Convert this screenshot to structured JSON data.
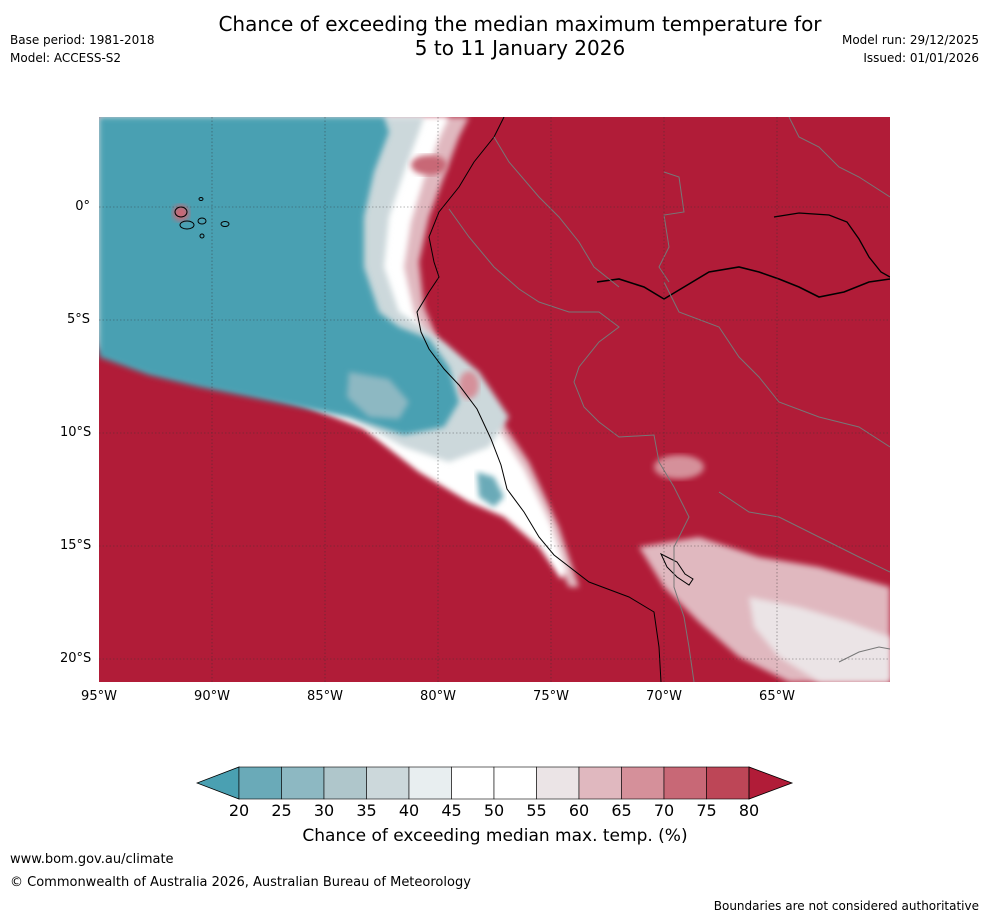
{
  "title_line1": "Chance of exceeding the median maximum temperature for",
  "title_line2": "5 to 11 January 2026",
  "meta_left": {
    "base_period": "Base period: 1981-2018",
    "model": "Model: ACCESS-S2"
  },
  "meta_right": {
    "model_run": "Model run: 29/12/2025",
    "issued": "Issued: 01/01/2026"
  },
  "lat_labels": [
    "0°",
    "5°S",
    "10°S",
    "15°S",
    "20°S"
  ],
  "lon_labels": [
    "95°W",
    "90°W",
    "85°W",
    "80°W",
    "75°W",
    "70°W",
    "65°W"
  ],
  "colorbar": {
    "ticks": [
      "20",
      "25",
      "30",
      "35",
      "40",
      "45",
      "50",
      "55",
      "60",
      "65",
      "70",
      "75",
      "80"
    ],
    "title": "Chance of exceeding median max. temp. (%)",
    "colors": [
      "#4aa0b2",
      "#6aaab8",
      "#8db8c2",
      "#afc6cb",
      "#ccd8db",
      "#e8eef0",
      "#ffffff",
      "#ffffff",
      "#ebe4e6",
      "#e0b8bf",
      "#d5909a",
      "#c86876",
      "#bd4657",
      "#b11c38"
    ]
  },
  "footer": {
    "url": "www.bom.gov.au/climate",
    "copyright": "© Commonwealth of Australia 2026, Australian Bureau of Meteorology",
    "disclaimer": "Boundaries are not considered authoritative"
  }
}
